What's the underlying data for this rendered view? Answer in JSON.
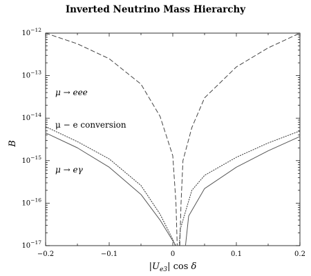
{
  "chart_data": {
    "type": "line",
    "title": "Inverted Neutrino Mass Hierarchy",
    "xlabel": "|U_e3| cos δ",
    "ylabel": "B",
    "xlim": [
      -0.2,
      0.2
    ],
    "ylim": [
      1e-17,
      1e-12
    ],
    "y_scale": "log",
    "grid": false,
    "x_ticks": [
      "−0.2",
      "−0.1",
      "0",
      "0.1",
      "0.2"
    ],
    "y_ticks": [
      {
        "base": "10",
        "exp": "−17"
      },
      {
        "base": "10",
        "exp": "−16"
      },
      {
        "base": "10",
        "exp": "−15"
      },
      {
        "base": "10",
        "exp": "−14"
      },
      {
        "base": "10",
        "exp": "−13"
      },
      {
        "base": "10",
        "exp": "−12"
      }
    ],
    "annotations": [
      {
        "id": "annot-mu-eee",
        "text": "μ → eee"
      },
      {
        "id": "annot-mu-e-conversion",
        "text": "μ − e conversion"
      },
      {
        "id": "annot-mu-egamma",
        "text": "μ → eγ"
      }
    ],
    "series": [
      {
        "style": "dashed",
        "color": "#444444",
        "left": {
          "x": [
            -0.2,
            -0.15,
            -0.1,
            -0.05,
            -0.02,
            0.0,
            0.005,
            0.007
          ],
          "y": [
            1e-12,
            5.6e-13,
            2.5e-13,
            6.3e-14,
            1.1e-14,
            1.3e-15,
            1e-16,
            1e-17
          ]
        },
        "right": {
          "x": [
            0.011,
            0.013,
            0.016,
            0.03,
            0.05,
            0.1,
            0.15,
            0.2
          ],
          "y": [
            1e-17,
            1e-16,
            1e-15,
            6e-15,
            3e-14,
            1.6e-13,
            4.5e-13,
            1e-12
          ]
        }
      },
      {
        "style": "dotted",
        "color": "#444444",
        "left": {
          "x": [
            -0.2,
            -0.15,
            -0.1,
            -0.05,
            -0.02,
            0.0,
            0.004
          ],
          "y": [
            6.3e-15,
            2.8e-15,
            1.1e-15,
            2.6e-16,
            5.5e-17,
            1.4e-17,
            1e-17
          ]
        },
        "right": {
          "x": [
            0.01,
            0.012,
            0.03,
            0.05,
            0.1,
            0.15,
            0.2
          ],
          "y": [
            1e-17,
            2.5e-17,
            2e-16,
            4.5e-16,
            1.2e-15,
            2.6e-15,
            5e-15
          ]
        }
      },
      {
        "style": "solid",
        "color": "#555555",
        "left": {
          "x": [
            -0.2,
            -0.15,
            -0.1,
            -0.05,
            -0.02,
            0.0,
            0.005
          ],
          "y": [
            4.5e-15,
            2e-15,
            7e-16,
            1.6e-16,
            4e-17,
            1.3e-17,
            1e-17
          ]
        },
        "right": {
          "x": [
            0.02,
            0.025,
            0.05,
            0.1,
            0.15,
            0.2
          ],
          "y": [
            1e-17,
            5e-17,
            2.2e-16,
            7e-16,
            1.7e-15,
            3.7e-15
          ]
        }
      }
    ]
  }
}
